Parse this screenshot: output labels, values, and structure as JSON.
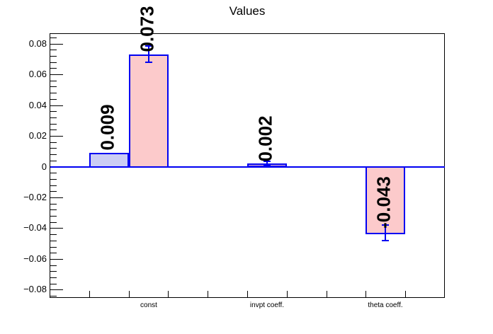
{
  "window": {
    "background": "#ffffff"
  },
  "chart_data": {
    "type": "bar",
    "title": "Values",
    "categories": [
      "const",
      "invpt coeff.",
      "theta coeff."
    ],
    "series": [
      {
        "name": "series-1",
        "color": "#cbcdf4",
        "values": [
          0.009,
          null,
          null
        ]
      },
      {
        "name": "series-2",
        "color": "#fccacb",
        "values": [
          0.073,
          0.002,
          -0.043
        ]
      }
    ],
    "bars": [
      {
        "bin": 1,
        "category": "const",
        "series": 0,
        "value": 0.009,
        "label": "0.009",
        "error": 0
      },
      {
        "bin": 2,
        "category": "const",
        "series": 1,
        "value": 0.073,
        "label": "0.073",
        "error": 0.0053
      },
      {
        "bin": 5,
        "category": "invpt coeff.",
        "series": 1,
        "value": 0.002,
        "label": "0.002",
        "error": 0.0015
      },
      {
        "bin": 8,
        "category": "theta coeff.",
        "series": 1,
        "value": -0.043,
        "label": "-0.043",
        "error": 0.005
      }
    ],
    "n_bins": 10,
    "category_bins": [
      2,
      5,
      8
    ],
    "y_ticks": [
      {
        "label": "0.08",
        "value": 0.08
      },
      {
        "label": "0.06",
        "value": 0.06
      },
      {
        "label": "0.04",
        "value": 0.04
      },
      {
        "label": "0.02",
        "value": 0.02
      },
      {
        "label": "0",
        "value": 0
      },
      {
        "label": "−0.02",
        "value": -0.02
      },
      {
        "label": "−0.04",
        "value": -0.04
      },
      {
        "label": "−0.06",
        "value": -0.06
      },
      {
        "label": "−0.08",
        "value": -0.08
      }
    ],
    "y_minor_step": 0.004,
    "ylim": [
      -0.0853,
      0.0867
    ],
    "xlabel": "",
    "ylabel": "",
    "grid": false,
    "legend": false,
    "colors": {
      "bar_outline": "#0000f2",
      "zero_line": "#0000f2",
      "error_bar": "#0000f2",
      "frame": "#000000",
      "text": "#000000"
    }
  }
}
